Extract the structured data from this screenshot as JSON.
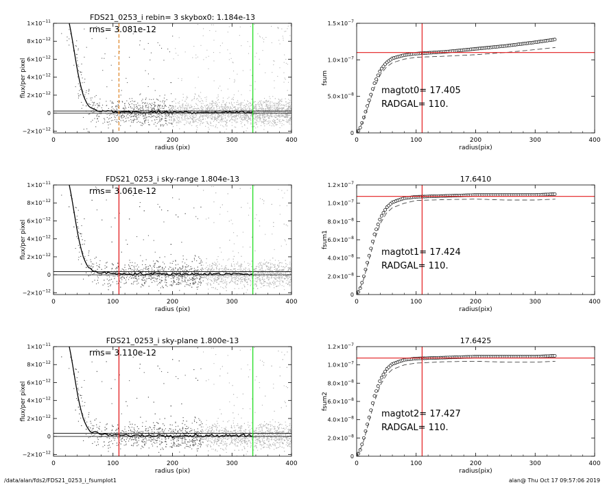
{
  "footer": {
    "left": "/data/alan/fds2/FDS21_0253_i_fsumplot1",
    "right": "alan@  Thu Oct 17 09:57:06 2019"
  },
  "colors": {
    "red": "#e31a1c",
    "green": "#22dd22",
    "orange": "#e08a2e",
    "scatter_dark": "#555555",
    "scatter_light": "#b0b0b0"
  },
  "chart_data": [
    {
      "type": "scatter",
      "title": "FDS21_0253_i rebin= 3    skybox0:  1.184e-13",
      "annotation": "rms= 3.081e-12",
      "xlabel": "radius (pix)",
      "ylabel": "flux/per pixel",
      "xlim": [
        0,
        400
      ],
      "ylim": [
        -2.2e-12,
        1e-11
      ],
      "xticks": [
        0,
        100,
        200,
        300,
        400
      ],
      "xtick_labels": [
        "0",
        "100",
        "200",
        "300",
        "400"
      ],
      "yticks": [
        -2e-12,
        0,
        2e-12,
        4e-12,
        6e-12,
        8e-12,
        1e-11
      ],
      "ytick_labels": [
        [
          "−2×10",
          "−12"
        ],
        [
          "0",
          ""
        ],
        [
          "2×10",
          "−12"
        ],
        [
          "4×10",
          "−12"
        ],
        [
          "6×10",
          "−12"
        ],
        [
          "8×10",
          "−12"
        ],
        [
          "1×10",
          "−11"
        ]
      ],
      "vlines": [
        {
          "x": 110,
          "color": "orange",
          "style": "dashed"
        },
        {
          "x": 335,
          "color": "green",
          "style": "solid"
        }
      ],
      "profile": [
        [
          20,
          1.2e-11
        ],
        [
          25,
          1.05e-11
        ],
        [
          30,
          8.8e-12
        ],
        [
          35,
          6.8e-12
        ],
        [
          40,
          4.8e-12
        ],
        [
          45,
          3.2e-12
        ],
        [
          50,
          2e-12
        ],
        [
          55,
          1.2e-12
        ],
        [
          60,
          7e-13
        ],
        [
          70,
          4e-13
        ],
        [
          80,
          2.5e-13
        ],
        [
          100,
          1.5e-13
        ],
        [
          150,
          1e-13
        ],
        [
          200,
          1e-13
        ],
        [
          250,
          1e-13
        ],
        [
          300,
          1e-13
        ],
        [
          335,
          1e-13
        ]
      ],
      "skylevel": 1.184e-13
    },
    {
      "type": "line",
      "title": "",
      "ylabel": "fsum",
      "xlabel": "radius(pix)",
      "xlim": [
        0,
        400
      ],
      "ylim": [
        0,
        1.5e-07
      ],
      "xticks": [
        0,
        100,
        200,
        300,
        400
      ],
      "xtick_labels": [
        "0",
        "100",
        "200",
        "300",
        "400"
      ],
      "yticks": [
        0,
        5e-08,
        1e-07,
        1.5e-07
      ],
      "ytick_labels": [
        [
          "0",
          ""
        ],
        [
          "5.0×10",
          "−8"
        ],
        [
          "1.0×10",
          "−7"
        ],
        [
          "1.5×10",
          "−7"
        ]
      ],
      "hline": 1.1e-07,
      "vline": 110,
      "annotation_lines": [
        "magtot0=  17.405",
        "RADGAL=    110."
      ],
      "series": [
        {
          "points": [
            [
              0,
              0
            ],
            [
              5,
              5e-09
            ],
            [
              10,
              1.6e-08
            ],
            [
              20,
              4.2e-08
            ],
            [
              30,
              6.8e-08
            ],
            [
              40,
              8.6e-08
            ],
            [
              50,
              9.6e-08
            ],
            [
              60,
              1.02e-07
            ],
            [
              80,
              1.065e-07
            ],
            [
              100,
              1.085e-07
            ],
            [
              150,
              1.11e-07
            ],
            [
              200,
              1.15e-07
            ],
            [
              250,
              1.19e-07
            ],
            [
              300,
              1.24e-07
            ],
            [
              335,
              1.28e-07
            ]
          ],
          "style": "circles"
        },
        {
          "points": [
            [
              0,
              0
            ],
            [
              10,
              1.4e-08
            ],
            [
              20,
              3.8e-08
            ],
            [
              30,
              6.2e-08
            ],
            [
              40,
              8e-08
            ],
            [
              50,
              9e-08
            ],
            [
              60,
              9.6e-08
            ],
            [
              80,
              1.01e-07
            ],
            [
              100,
              1.035e-07
            ],
            [
              150,
              1.05e-07
            ],
            [
              200,
              1.07e-07
            ],
            [
              250,
              1.1e-07
            ],
            [
              300,
              1.14e-07
            ],
            [
              335,
              1.17e-07
            ]
          ],
          "style": "dashed"
        }
      ]
    },
    {
      "type": "scatter",
      "title": "FDS21_0253_i sky-range  1.804e-13",
      "annotation": "rms= 3.061e-12",
      "xlabel": "radius (pix)",
      "ylabel": "flux/per pixel",
      "xlim": [
        0,
        400
      ],
      "ylim": [
        -2.2e-12,
        1e-11
      ],
      "xticks": [
        0,
        100,
        200,
        300,
        400
      ],
      "xtick_labels": [
        "0",
        "100",
        "200",
        "300",
        "400"
      ],
      "yticks": [
        -2e-12,
        0,
        2e-12,
        4e-12,
        6e-12,
        8e-12,
        1e-11
      ],
      "ytick_labels": [
        [
          "−2×10",
          "−12"
        ],
        [
          "0",
          ""
        ],
        [
          "2×10",
          "−12"
        ],
        [
          "4×10",
          "−12"
        ],
        [
          "6×10",
          "−12"
        ],
        [
          "8×10",
          "−12"
        ],
        [
          "1×10",
          "−11"
        ]
      ],
      "vlines": [
        {
          "x": 110,
          "color": "red",
          "style": "solid"
        },
        {
          "x": 335,
          "color": "green",
          "style": "solid"
        }
      ],
      "profile": [
        [
          20,
          1.2e-11
        ],
        [
          25,
          1.05e-11
        ],
        [
          30,
          8.8e-12
        ],
        [
          35,
          6.8e-12
        ],
        [
          40,
          4.8e-12
        ],
        [
          45,
          3.2e-12
        ],
        [
          50,
          2e-12
        ],
        [
          55,
          1.2e-12
        ],
        [
          60,
          7e-13
        ],
        [
          70,
          4e-13
        ],
        [
          80,
          2.5e-13
        ],
        [
          100,
          1.5e-13
        ],
        [
          150,
          1e-13
        ],
        [
          200,
          1e-13
        ],
        [
          250,
          1e-13
        ],
        [
          300,
          1e-13
        ],
        [
          335,
          1e-13
        ]
      ],
      "skylevel": 1.804e-13
    },
    {
      "type": "line",
      "title": "17.6410",
      "ylabel": "fsum1",
      "xlabel": "radius(pix)",
      "xlim": [
        0,
        400
      ],
      "ylim": [
        0,
        1.2e-07
      ],
      "xticks": [
        0,
        100,
        200,
        300,
        400
      ],
      "xtick_labels": [
        "0",
        "100",
        "200",
        "300",
        "400"
      ],
      "yticks": [
        0,
        2e-08,
        4e-08,
        6e-08,
        8e-08,
        1e-07,
        1.2e-07
      ],
      "ytick_labels": [
        [
          "0",
          ""
        ],
        [
          "2.0×10",
          "−8"
        ],
        [
          "4.0×10",
          "−8"
        ],
        [
          "6.0×10",
          "−8"
        ],
        [
          "8.0×10",
          "−8"
        ],
        [
          "1.0×10",
          "−7"
        ],
        [
          "1.2×10",
          "−7"
        ]
      ],
      "hline": 1.075e-07,
      "vline": 110,
      "annotation_lines": [
        "magtot1=  17.424",
        "RADGAL=    110."
      ],
      "series": [
        {
          "points": [
            [
              0,
              0
            ],
            [
              5,
              5e-09
            ],
            [
              10,
              1.5e-08
            ],
            [
              20,
              4e-08
            ],
            [
              30,
              6.6e-08
            ],
            [
              40,
              8.4e-08
            ],
            [
              50,
              9.5e-08
            ],
            [
              60,
              1.01e-07
            ],
            [
              80,
              1.055e-07
            ],
            [
              100,
              1.07e-07
            ],
            [
              150,
              1.08e-07
            ],
            [
              200,
              1.09e-07
            ],
            [
              250,
              1.09e-07
            ],
            [
              300,
              1.09e-07
            ],
            [
              335,
              1.1e-07
            ]
          ],
          "style": "circles"
        },
        {
          "points": [
            [
              0,
              0
            ],
            [
              10,
              1.3e-08
            ],
            [
              20,
              3.6e-08
            ],
            [
              30,
              6e-08
            ],
            [
              40,
              7.8e-08
            ],
            [
              50,
              8.9e-08
            ],
            [
              60,
              9.5e-08
            ],
            [
              80,
              1e-07
            ],
            [
              100,
              1.03e-07
            ],
            [
              150,
              1.04e-07
            ],
            [
              200,
              1.045e-07
            ],
            [
              250,
              1.035e-07
            ],
            [
              300,
              1.035e-07
            ],
            [
              335,
              1.045e-07
            ]
          ],
          "style": "dashed"
        }
      ]
    },
    {
      "type": "scatter",
      "title": "FDS21_0253_i sky-plane  1.800e-13",
      "annotation": "rms= 3.110e-12",
      "xlabel": "radius (pix)",
      "ylabel": "flux/per pixel",
      "xlim": [
        0,
        400
      ],
      "ylim": [
        -2.2e-12,
        1e-11
      ],
      "xticks": [
        0,
        100,
        200,
        300,
        400
      ],
      "xtick_labels": [
        "0",
        "100",
        "200",
        "300",
        "400"
      ],
      "yticks": [
        -2e-12,
        0,
        2e-12,
        4e-12,
        6e-12,
        8e-12,
        1e-11
      ],
      "ytick_labels": [
        [
          "−2×10",
          "−12"
        ],
        [
          "0",
          ""
        ],
        [
          "2×10",
          "−12"
        ],
        [
          "4×10",
          "−12"
        ],
        [
          "6×10",
          "−12"
        ],
        [
          "8×10",
          "−12"
        ],
        [
          "1×10",
          "−11"
        ]
      ],
      "vlines": [
        {
          "x": 110,
          "color": "red",
          "style": "solid"
        },
        {
          "x": 335,
          "color": "green",
          "style": "solid"
        }
      ],
      "profile": [
        [
          20,
          1.2e-11
        ],
        [
          25,
          1.05e-11
        ],
        [
          30,
          8.8e-12
        ],
        [
          35,
          6.8e-12
        ],
        [
          40,
          4.8e-12
        ],
        [
          45,
          3.2e-12
        ],
        [
          50,
          2e-12
        ],
        [
          55,
          1.2e-12
        ],
        [
          60,
          7e-13
        ],
        [
          70,
          4e-13
        ],
        [
          80,
          2.5e-13
        ],
        [
          100,
          1.5e-13
        ],
        [
          150,
          1e-13
        ],
        [
          200,
          1e-13
        ],
        [
          250,
          1e-13
        ],
        [
          300,
          1e-13
        ],
        [
          335,
          1e-13
        ]
      ],
      "skylevel": 1.8e-13
    },
    {
      "type": "line",
      "title": "17.6425",
      "ylabel": "fsum2",
      "xlabel": "radius(pix)",
      "xlim": [
        0,
        400
      ],
      "ylim": [
        0,
        1.2e-07
      ],
      "xticks": [
        0,
        100,
        200,
        300,
        400
      ],
      "xtick_labels": [
        "0",
        "100",
        "200",
        "300",
        "400"
      ],
      "yticks": [
        0,
        2e-08,
        4e-08,
        6e-08,
        8e-08,
        1e-07,
        1.2e-07
      ],
      "ytick_labels": [
        [
          "0",
          ""
        ],
        [
          "2.0×10",
          "−8"
        ],
        [
          "4.0×10",
          "−8"
        ],
        [
          "6.0×10",
          "−8"
        ],
        [
          "8.0×10",
          "−8"
        ],
        [
          "1.0×10",
          "−7"
        ],
        [
          "1.2×10",
          "−7"
        ]
      ],
      "hline": 1.075e-07,
      "vline": 110,
      "annotation_lines": [
        "magtot2=  17.427",
        "RADGAL=    110."
      ],
      "series": [
        {
          "points": [
            [
              0,
              0
            ],
            [
              5,
              5e-09
            ],
            [
              10,
              1.5e-08
            ],
            [
              20,
              4e-08
            ],
            [
              30,
              6.6e-08
            ],
            [
              40,
              8.4e-08
            ],
            [
              50,
              9.5e-08
            ],
            [
              60,
              1.01e-07
            ],
            [
              80,
              1.055e-07
            ],
            [
              100,
              1.07e-07
            ],
            [
              150,
              1.08e-07
            ],
            [
              200,
              1.09e-07
            ],
            [
              250,
              1.09e-07
            ],
            [
              300,
              1.09e-07
            ],
            [
              335,
              1.1e-07
            ]
          ],
          "style": "circles"
        },
        {
          "points": [
            [
              0,
              0
            ],
            [
              10,
              1.3e-08
            ],
            [
              20,
              3.6e-08
            ],
            [
              30,
              6e-08
            ],
            [
              40,
              7.8e-08
            ],
            [
              50,
              8.9e-08
            ],
            [
              60,
              9.5e-08
            ],
            [
              80,
              1e-07
            ],
            [
              100,
              1.02e-07
            ],
            [
              150,
              1.035e-07
            ],
            [
              200,
              1.04e-07
            ],
            [
              250,
              1.03e-07
            ],
            [
              300,
              1.03e-07
            ],
            [
              335,
              1.04e-07
            ]
          ],
          "style": "dashed"
        }
      ]
    }
  ]
}
